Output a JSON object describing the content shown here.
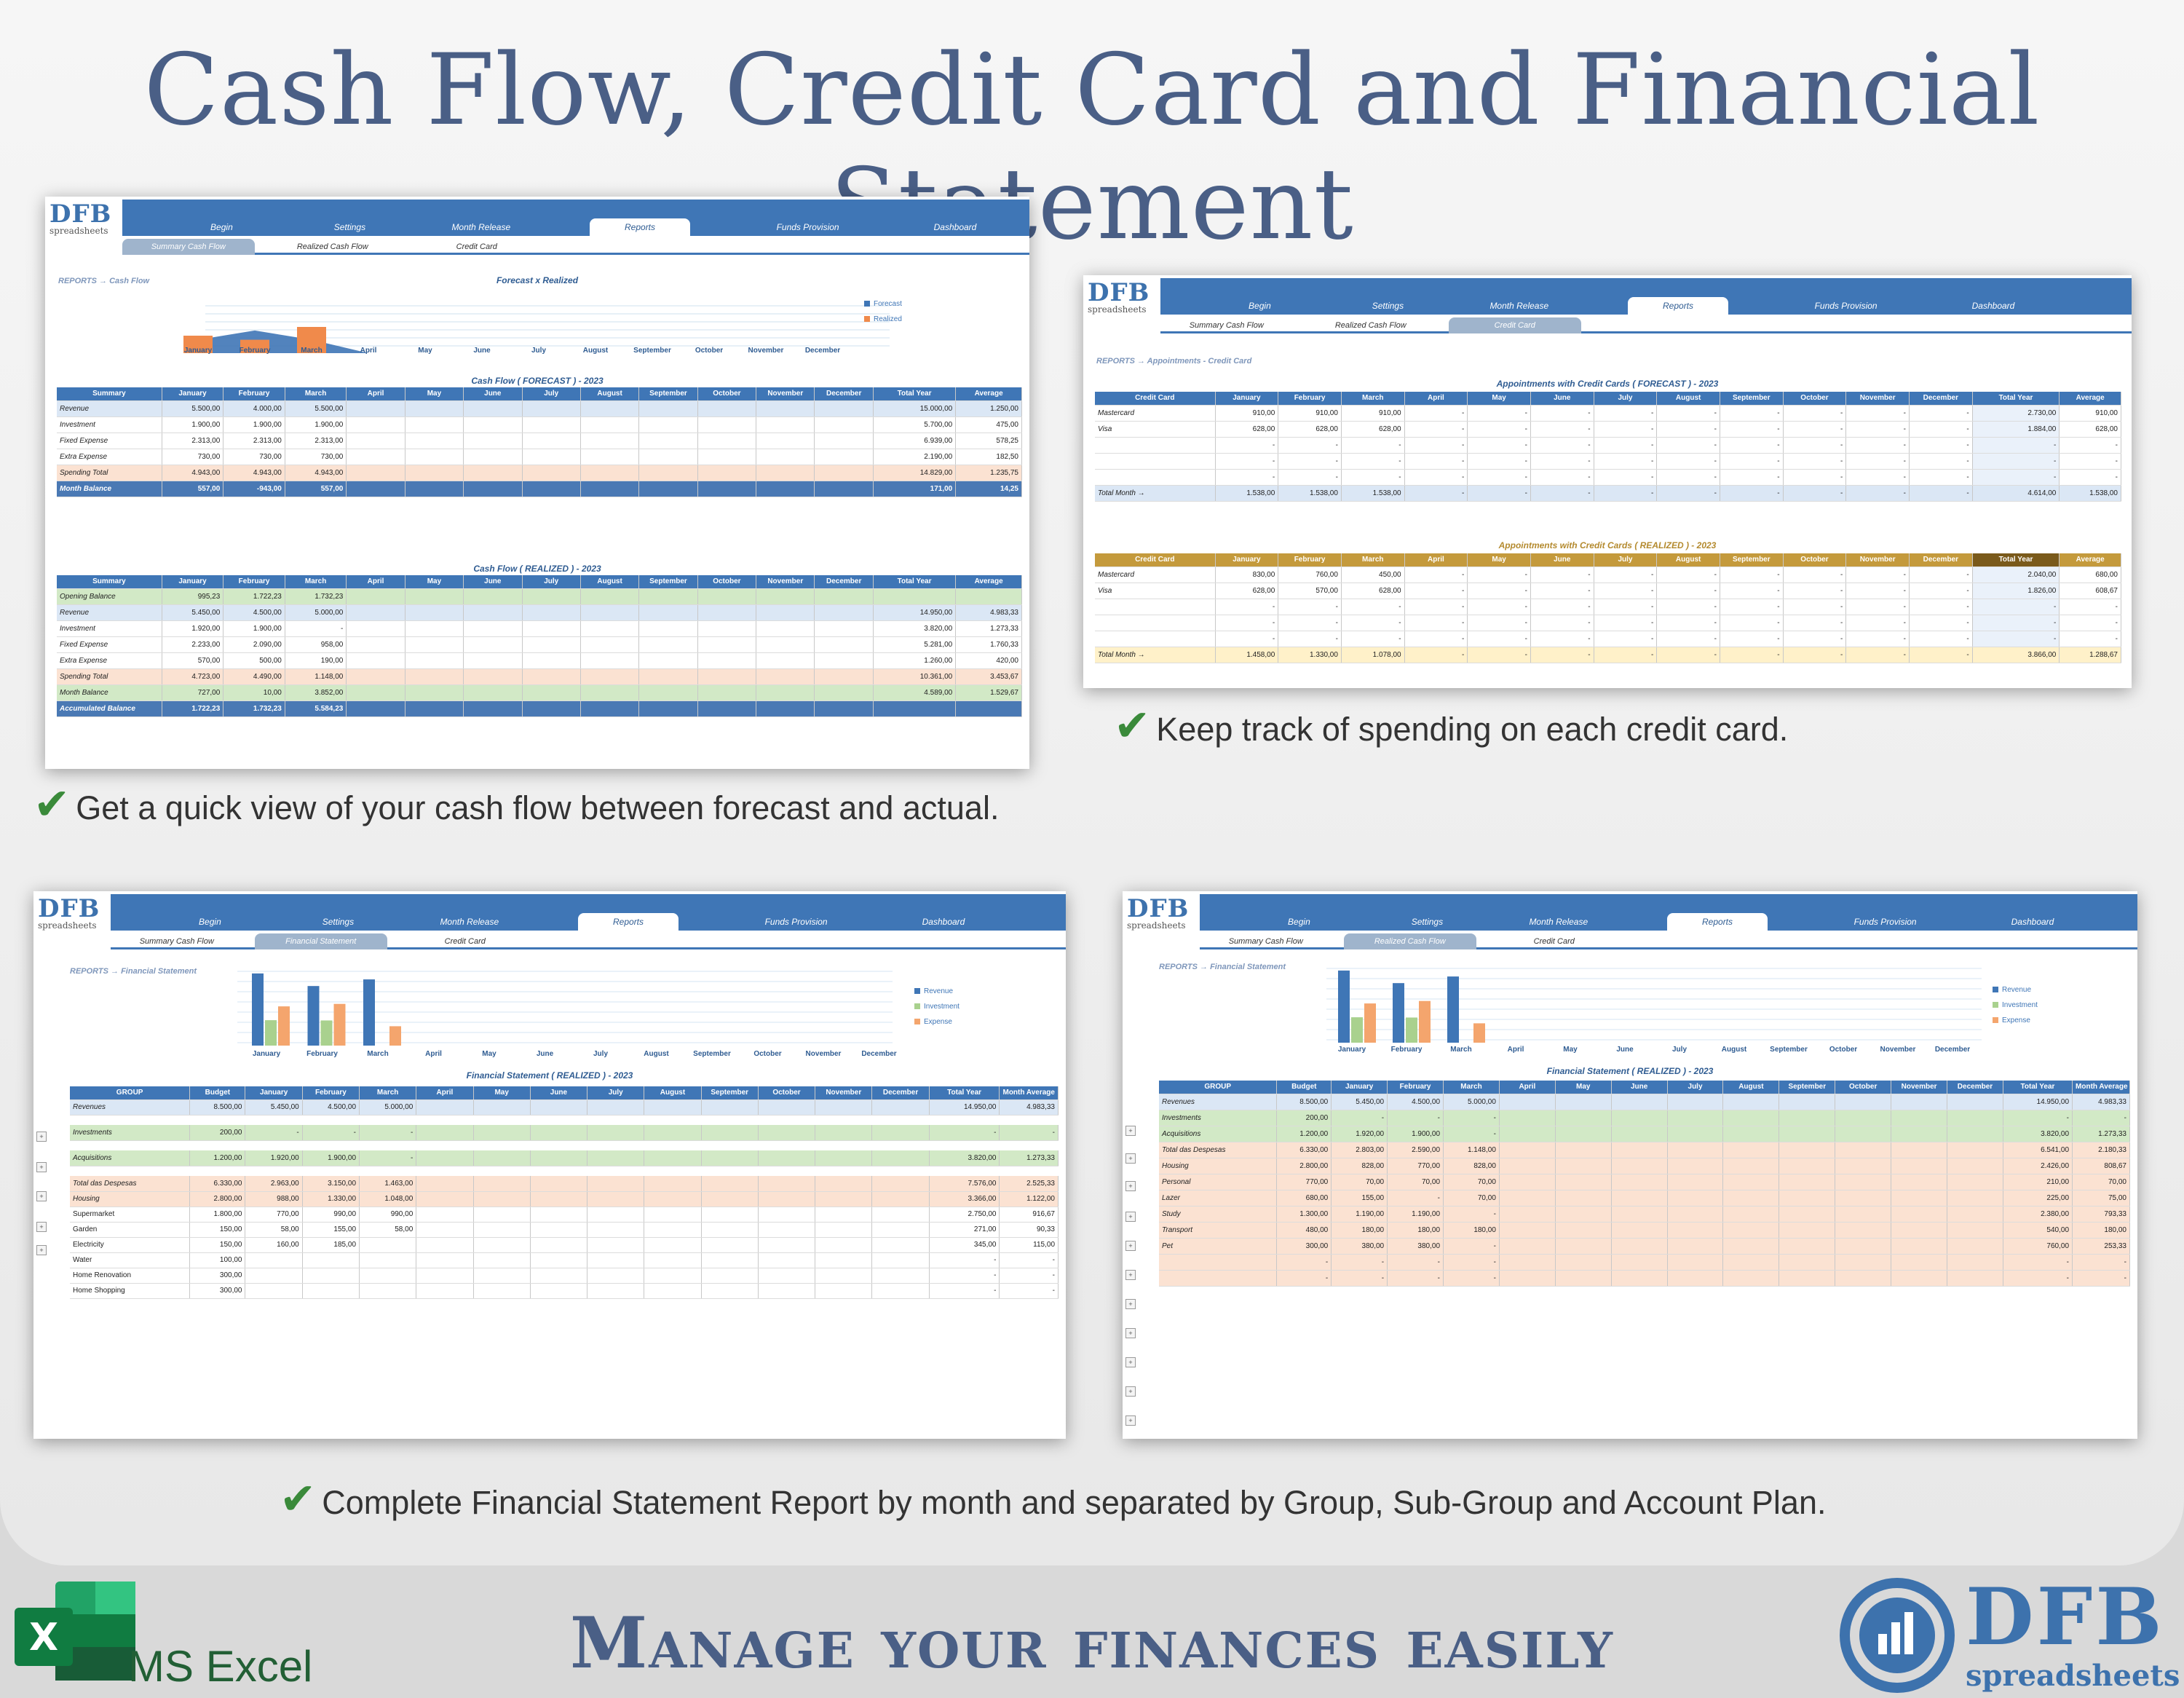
{
  "title": "Cash Flow, Credit Card and Financial Statement",
  "slogan": "Manage your finances easily",
  "excel_label": "MS Excel",
  "brand": {
    "name": "DFB",
    "sub": "spreadsheets"
  },
  "logo": {
    "name": "DFB",
    "sub": "spreadsheets"
  },
  "captions": {
    "cashflow": "Get a quick view of your cash flow between forecast and actual.",
    "creditcard": "Keep track of spending on each credit card.",
    "statement": "Complete Financial Statement Report by month and separated by Group, Sub-Group and Account Plan."
  },
  "tabs": [
    "Begin",
    "Settings",
    "Month Release",
    "Reports",
    "Funds Provision",
    "Dashboard"
  ],
  "subtabs": [
    "Summary Cash Flow",
    "Realized Cash Flow",
    "Credit Card"
  ],
  "subtabs_fs": [
    "Summary Cash Flow",
    "Financial Statement",
    "Credit Card"
  ],
  "months": [
    "January",
    "February",
    "March",
    "April",
    "May",
    "June",
    "July",
    "August",
    "September",
    "October",
    "November",
    "December"
  ],
  "shot1": {
    "crumb": "REPORTS → Cash Flow",
    "chart_title": "Forecast x Realized",
    "legend": [
      "Forecast",
      "Realized"
    ],
    "forecast_title": "Cash Flow ( FORECAST ) - 2023",
    "realized_title": "Cash Flow ( REALIZED ) - 2023",
    "head": [
      "Summary",
      "January",
      "February",
      "March",
      "April",
      "May",
      "June",
      "July",
      "August",
      "September",
      "October",
      "November",
      "December",
      "Total Year",
      "Average"
    ],
    "forecast_rows": [
      {
        "label": "Revenue",
        "v": [
          "5.500,00",
          "4.000,00",
          "5.500,00"
        ],
        "total": "15.000,00",
        "avg": "1.250,00",
        "cls": "r-blue"
      },
      {
        "label": "Investment",
        "v": [
          "1.900,00",
          "1.900,00",
          "1.900,00"
        ],
        "total": "5.700,00",
        "avg": "475,00",
        "cls": ""
      },
      {
        "label": "Fixed Expense",
        "v": [
          "2.313,00",
          "2.313,00",
          "2.313,00"
        ],
        "total": "6.939,00",
        "avg": "578,25",
        "cls": ""
      },
      {
        "label": "Extra Expense",
        "v": [
          "730,00",
          "730,00",
          "730,00"
        ],
        "total": "2.190,00",
        "avg": "182,50",
        "cls": ""
      },
      {
        "label": "Spending Total",
        "v": [
          "4.943,00",
          "4.943,00",
          "4.943,00"
        ],
        "total": "14.829,00",
        "avg": "1.235,75",
        "cls": "r-orange"
      },
      {
        "label": "Month Balance",
        "v": [
          "557,00",
          "-943,00",
          "557,00"
        ],
        "total": "171,00",
        "avg": "14,25",
        "cls": "r-head"
      }
    ],
    "realized_rows": [
      {
        "label": "Opening Balance",
        "v": [
          "995,23",
          "1.722,23",
          "1.732,23"
        ],
        "total": "",
        "avg": "",
        "cls": "r-green"
      },
      {
        "label": "Revenue",
        "v": [
          "5.450,00",
          "4.500,00",
          "5.000,00"
        ],
        "total": "14.950,00",
        "avg": "4.983,33",
        "cls": "r-blue"
      },
      {
        "label": "Investment",
        "v": [
          "1.920,00",
          "1.900,00",
          "-"
        ],
        "total": "3.820,00",
        "avg": "1.273,33",
        "cls": ""
      },
      {
        "label": "Fixed Expense",
        "v": [
          "2.233,00",
          "2.090,00",
          "958,00"
        ],
        "total": "5.281,00",
        "avg": "1.760,33",
        "cls": ""
      },
      {
        "label": "Extra Expense",
        "v": [
          "570,00",
          "500,00",
          "190,00"
        ],
        "total": "1.260,00",
        "avg": "420,00",
        "cls": ""
      },
      {
        "label": "Spending Total",
        "v": [
          "4.723,00",
          "4.490,00",
          "1.148,00"
        ],
        "total": "10.361,00",
        "avg": "3.453,67",
        "cls": "r-orange"
      },
      {
        "label": "Month Balance",
        "v": [
          "727,00",
          "10,00",
          "3.852,00"
        ],
        "total": "4.589,00",
        "avg": "1.529,67",
        "cls": "r-green"
      },
      {
        "label": "Accumulated Balance",
        "v": [
          "1.722,23",
          "1.732,23",
          "5.584,23"
        ],
        "total": "",
        "avg": "",
        "cls": "r-head"
      }
    ]
  },
  "shot2": {
    "crumb": "REPORTS → Appointments - Credit Card",
    "forecast_title": "Appointments with Credit Cards ( FORECAST ) - 2023",
    "realized_title": "Appointments with Credit Cards ( REALIZED ) - 2023",
    "head": [
      "Credit Card",
      "January",
      "February",
      "March",
      "April",
      "May",
      "June",
      "July",
      "August",
      "September",
      "October",
      "November",
      "December",
      "Total Year",
      "Average"
    ],
    "forecast_rows": [
      {
        "label": "Mastercard",
        "v": [
          "910,00",
          "910,00",
          "910,00"
        ],
        "total": "2.730,00",
        "avg": "910,00"
      },
      {
        "label": "Visa",
        "v": [
          "628,00",
          "628,00",
          "628,00"
        ],
        "total": "1.884,00",
        "avg": "628,00"
      },
      {
        "label": "",
        "v": [
          "-",
          "-",
          "-"
        ],
        "total": "-",
        "avg": "-"
      },
      {
        "label": "",
        "v": [
          "-",
          "-",
          "-"
        ],
        "total": "-",
        "avg": "-"
      },
      {
        "label": "",
        "v": [
          "-",
          "-",
          "-"
        ],
        "total": "-",
        "avg": "-"
      }
    ],
    "forecast_total": {
      "label": "Total Month →",
      "v": [
        "1.538,00",
        "1.538,00",
        "1.538,00"
      ],
      "total": "4.614,00",
      "avg": "1.538,00"
    },
    "realized_rows": [
      {
        "label": "Mastercard",
        "v": [
          "830,00",
          "760,00",
          "450,00"
        ],
        "total": "2.040,00",
        "avg": "680,00"
      },
      {
        "label": "Visa",
        "v": [
          "628,00",
          "570,00",
          "628,00"
        ],
        "total": "1.826,00",
        "avg": "608,67"
      },
      {
        "label": "",
        "v": [
          "-",
          "-",
          "-"
        ],
        "total": "-",
        "avg": "-"
      },
      {
        "label": "",
        "v": [
          "-",
          "-",
          "-"
        ],
        "total": "-",
        "avg": "-"
      },
      {
        "label": "",
        "v": [
          "-",
          "-",
          "-"
        ],
        "total": "-",
        "avg": "-"
      }
    ],
    "realized_total": {
      "label": "Total Month →",
      "v": [
        "1.458,00",
        "1.330,00",
        "1.078,00"
      ],
      "total": "3.866,00",
      "avg": "1.288,67"
    }
  },
  "shot3": {
    "crumb": "REPORTS → Financial Statement",
    "legend": [
      "Revenue",
      "Investment",
      "Expense"
    ],
    "table_title": "Financial Statement ( REALIZED ) - 2023",
    "head": [
      "GROUP",
      "Budget",
      "January",
      "February",
      "March",
      "April",
      "May",
      "June",
      "July",
      "August",
      "September",
      "October",
      "November",
      "December",
      "Total Year",
      "Month Average"
    ],
    "rows": [
      {
        "label": "Revenues",
        "b": "8.500,00",
        "v": [
          "5.450,00",
          "4.500,00",
          "5.000,00"
        ],
        "total": "14.950,00",
        "avg": "4.983,33",
        "cls": "r-blue",
        "gap": true
      },
      {
        "label": "Investments",
        "b": "200,00",
        "v": [
          "-",
          "-",
          "-"
        ],
        "total": "-",
        "avg": "-",
        "cls": "r-green",
        "gap": true
      },
      {
        "label": "Acquisitions",
        "b": "1.200,00",
        "v": [
          "1.920,00",
          "1.900,00",
          "-"
        ],
        "total": "3.820,00",
        "avg": "1.273,33",
        "cls": "r-green",
        "gap": true
      },
      {
        "label": "Total das Despesas",
        "b": "6.330,00",
        "v": [
          "2.963,00",
          "3.150,00",
          "1.463,00"
        ],
        "total": "7.576,00",
        "avg": "2.525,33",
        "cls": "r-orange",
        "gap": false
      },
      {
        "label": "Housing",
        "b": "2.800,00",
        "v": [
          "988,00",
          "1.330,00",
          "1.048,00"
        ],
        "total": "3.366,00",
        "avg": "1.122,00",
        "cls": "r-orange",
        "gap": false
      },
      {
        "label": "Supermarket",
        "b": "1.800,00",
        "v": [
          "770,00",
          "990,00",
          "990,00"
        ],
        "total": "2.750,00",
        "avg": "916,67",
        "cls": "",
        "gap": false
      },
      {
        "label": "Garden",
        "b": "150,00",
        "v": [
          "58,00",
          "155,00",
          "58,00"
        ],
        "total": "271,00",
        "avg": "90,33",
        "cls": "",
        "gap": false
      },
      {
        "label": "Electricity",
        "b": "150,00",
        "v": [
          "160,00",
          "185,00",
          ""
        ],
        "total": "345,00",
        "avg": "115,00",
        "cls": "",
        "gap": false
      },
      {
        "label": "Water",
        "b": "100,00",
        "v": [
          "",
          "",
          ""
        ],
        "total": "-",
        "avg": "-",
        "cls": "",
        "gap": false
      },
      {
        "label": "Home Renovation",
        "b": "300,00",
        "v": [
          "",
          "",
          ""
        ],
        "total": "-",
        "avg": "-",
        "cls": "",
        "gap": false
      },
      {
        "label": "Home Shopping",
        "b": "300,00",
        "v": [
          "",
          "",
          ""
        ],
        "total": "-",
        "avg": "-",
        "cls": "",
        "gap": false
      }
    ]
  },
  "shot4": {
    "crumb": "REPORTS → Financial Statement",
    "legend": [
      "Revenue",
      "Investment",
      "Expense"
    ],
    "table_title": "Financial Statement ( REALIZED ) - 2023",
    "head": [
      "GROUP",
      "Budget",
      "January",
      "February",
      "March",
      "April",
      "May",
      "June",
      "July",
      "August",
      "September",
      "October",
      "November",
      "December",
      "Total Year",
      "Month Average"
    ],
    "rows": [
      {
        "label": "Revenues",
        "b": "8.500,00",
        "v": [
          "5.450,00",
          "4.500,00",
          "5.000,00"
        ],
        "total": "14.950,00",
        "avg": "4.983,33",
        "cls": "r-blue"
      },
      {
        "label": "Investments",
        "b": "200,00",
        "v": [
          "-",
          "-",
          "-"
        ],
        "total": "-",
        "avg": "-",
        "cls": "r-green"
      },
      {
        "label": "Acquisitions",
        "b": "1.200,00",
        "v": [
          "1.920,00",
          "1.900,00",
          "-"
        ],
        "total": "3.820,00",
        "avg": "1.273,33",
        "cls": "r-green"
      },
      {
        "label": "Total das Despesas",
        "b": "6.330,00",
        "v": [
          "2.803,00",
          "2.590,00",
          "1.148,00"
        ],
        "total": "6.541,00",
        "avg": "2.180,33",
        "cls": "r-orange"
      },
      {
        "label": "Housing",
        "b": "2.800,00",
        "v": [
          "828,00",
          "770,00",
          "828,00"
        ],
        "total": "2.426,00",
        "avg": "808,67",
        "cls": "r-orange"
      },
      {
        "label": "Personal",
        "b": "770,00",
        "v": [
          "70,00",
          "70,00",
          "70,00"
        ],
        "total": "210,00",
        "avg": "70,00",
        "cls": "r-orange"
      },
      {
        "label": "Lazer",
        "b": "680,00",
        "v": [
          "155,00",
          "-",
          "70,00"
        ],
        "total": "225,00",
        "avg": "75,00",
        "cls": "r-orange"
      },
      {
        "label": "Study",
        "b": "1.300,00",
        "v": [
          "1.190,00",
          "1.190,00",
          "-"
        ],
        "total": "2.380,00",
        "avg": "793,33",
        "cls": "r-orange"
      },
      {
        "label": "Transport",
        "b": "480,00",
        "v": [
          "180,00",
          "180,00",
          "180,00"
        ],
        "total": "540,00",
        "avg": "180,00",
        "cls": "r-orange"
      },
      {
        "label": "Pet",
        "b": "300,00",
        "v": [
          "380,00",
          "380,00",
          "-"
        ],
        "total": "760,00",
        "avg": "253,33",
        "cls": "r-orange"
      },
      {
        "label": "",
        "b": "-",
        "v": [
          "-",
          "-",
          "-"
        ],
        "total": "-",
        "avg": "-",
        "cls": "r-orange"
      },
      {
        "label": "",
        "b": "-",
        "v": [
          "-",
          "-",
          "-"
        ],
        "total": "-",
        "avg": "-",
        "cls": "r-orange"
      }
    ]
  },
  "chart_data": [
    {
      "type": "area",
      "title": "Forecast x Realized",
      "categories": [
        "January",
        "February",
        "March",
        "April",
        "May",
        "June",
        "July",
        "August",
        "September",
        "October",
        "November",
        "December"
      ],
      "series": [
        {
          "name": "Forecast",
          "values": [
            557,
            -943,
            557,
            0,
            0,
            0,
            0,
            0,
            0,
            0,
            0,
            0
          ]
        },
        {
          "name": "Realized",
          "values": [
            727,
            10,
            3852,
            0,
            0,
            0,
            0,
            0,
            0,
            0,
            0,
            0
          ]
        }
      ]
    },
    {
      "type": "bar",
      "categories": [
        "January",
        "February",
        "March",
        "April",
        "May",
        "June",
        "July",
        "August",
        "September",
        "October",
        "November",
        "December"
      ],
      "series": [
        {
          "name": "Revenue",
          "values": [
            5450,
            4500,
            5000,
            0,
            0,
            0,
            0,
            0,
            0,
            0,
            0,
            0
          ]
        },
        {
          "name": "Investment",
          "values": [
            1920,
            1900,
            0,
            0,
            0,
            0,
            0,
            0,
            0,
            0,
            0,
            0
          ]
        },
        {
          "name": "Expense",
          "values": [
            2963,
            3150,
            1463,
            0,
            0,
            0,
            0,
            0,
            0,
            0,
            0,
            0
          ]
        }
      ]
    }
  ],
  "colors": {
    "blue": "#3f76b6",
    "orange": "#f4a56d",
    "green": "#a9d18e",
    "title": "#4a5f86"
  }
}
